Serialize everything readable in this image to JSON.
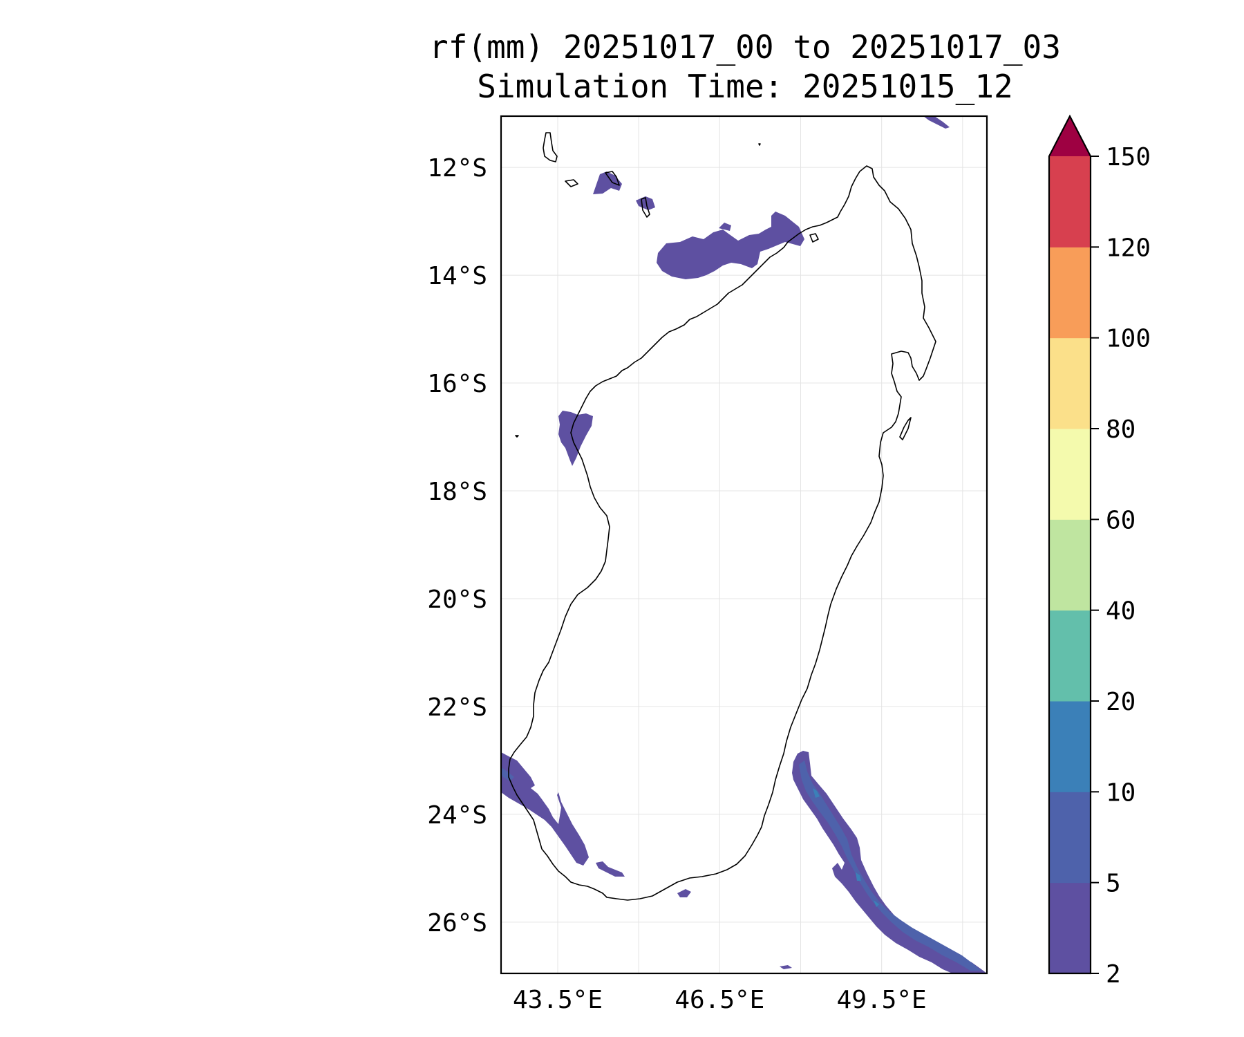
{
  "title": {
    "line1": "rf(mm) 20251017_00 to 20251017_03",
    "line2": "Simulation Time: 20251015_12"
  },
  "map": {
    "region": "Madagascar",
    "extent": {
      "lon_min": 42.45,
      "lon_max": 51.45,
      "lat_max": -11.05,
      "lat_min": -26.95
    },
    "lat_ticks": [
      {
        "value": -12,
        "label": "12°S"
      },
      {
        "value": -14,
        "label": "14°S"
      },
      {
        "value": -16,
        "label": "16°S"
      },
      {
        "value": -18,
        "label": "18°S"
      },
      {
        "value": -20,
        "label": "20°S"
      },
      {
        "value": -22,
        "label": "22°S"
      },
      {
        "value": -24,
        "label": "24°S"
      },
      {
        "value": -26,
        "label": "26°S"
      }
    ],
    "lon_ticks": [
      {
        "value": 43.5,
        "label": "43.5°E"
      },
      {
        "value": 46.5,
        "label": "46.5°E"
      },
      {
        "value": 49.5,
        "label": "49.5°E"
      }
    ],
    "extra_lon_gridlines": [
      45.0,
      48.0,
      51.0
    ]
  },
  "colorbar": {
    "levels": [
      "2",
      "5",
      "10",
      "20",
      "40",
      "60",
      "80",
      "100",
      "120",
      "150"
    ],
    "colors": [
      "#5e50a1",
      "#4e62ab",
      "#3b80b8",
      "#63bfab",
      "#bfe5a0",
      "#f4faad",
      "#fbe08a",
      "#f89d59",
      "#d7404f"
    ],
    "extend_color": "#9e0142"
  },
  "rain_areas": [
    {
      "name": "north-islands",
      "category": "2-5",
      "color": "#5e50a1"
    },
    {
      "name": "north-band",
      "category": "2-5",
      "color": "#5e50a1"
    },
    {
      "name": "west-coast",
      "category": "2-5",
      "color": "#5e50a1"
    },
    {
      "name": "southwest",
      "category": "2-10",
      "color": "#5e50a1"
    },
    {
      "name": "southeast-band",
      "category": "2-20",
      "color": "#5e50a1"
    }
  ]
}
